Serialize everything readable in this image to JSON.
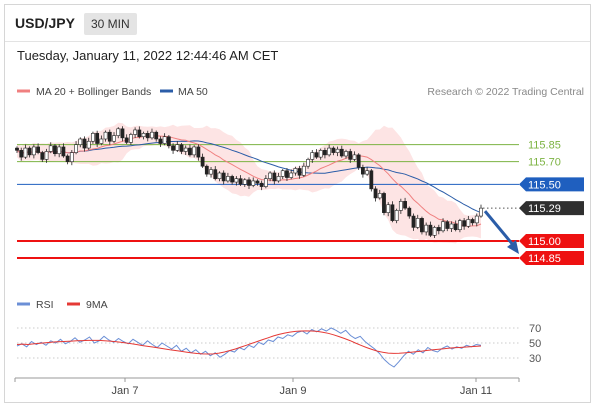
{
  "header": {
    "symbol": "USD/JPY",
    "timeframe": "30 MIN"
  },
  "timestamp": "Tuesday, January 11, 2022 12:44:46 AM CET",
  "colors": {
    "ma20": "#f08080",
    "ma50": "#2b5da8",
    "band_fill": "#fde4e4",
    "level_green": "#7cb342",
    "level_blue": "#1f5fbf",
    "level_red": "#ee1111",
    "price_tag": "#2f2f2f",
    "rsi": "#6b8fd6",
    "rsi_ma": "#e53935",
    "arrow": "#2b5da8"
  },
  "chart_data": [
    {
      "type": "candlestick",
      "legend": [
        {
          "label": "MA 20 + Bollinger Bands",
          "color": "#f08080",
          "style": "line"
        },
        {
          "label": "MA 50",
          "color": "#2b5da8",
          "style": "line"
        }
      ],
      "source": "Research © 2022 Trading Central",
      "legend_position": "top",
      "grid": false,
      "ylim": [
        114.7,
        116.2
      ],
      "x_ticks": [
        "Jan 7",
        "Jan 9",
        "Jan 11"
      ],
      "levels": [
        {
          "label": "115.85",
          "value": 115.85,
          "color": "#7cb342",
          "style": "line"
        },
        {
          "label": "115.70",
          "value": 115.7,
          "color": "#7cb342",
          "style": "line"
        },
        {
          "label": "115.50",
          "value": 115.5,
          "color": "#1f5fbf",
          "style": "tag"
        },
        {
          "label": "115.29",
          "value": 115.29,
          "color": "#2f2f2f",
          "style": "tag"
        },
        {
          "label": "115.00",
          "value": 115.0,
          "color": "#ee1111",
          "style": "tag"
        },
        {
          "label": "114.85",
          "value": 114.85,
          "color": "#ee1111",
          "style": "tag"
        }
      ],
      "forecast_arrow": {
        "from": 115.29,
        "to": 114.85,
        "direction": "down"
      },
      "close": [
        115.8,
        115.74,
        115.82,
        115.76,
        115.83,
        115.78,
        115.72,
        115.79,
        115.84,
        115.77,
        115.83,
        115.75,
        115.7,
        115.78,
        115.85,
        115.9,
        115.82,
        115.88,
        115.95,
        115.86,
        115.9,
        115.96,
        115.88,
        115.93,
        115.99,
        115.91,
        115.87,
        115.94,
        115.98,
        115.92,
        115.95,
        115.91,
        115.96,
        115.9,
        115.86,
        115.92,
        115.84,
        115.8,
        115.85,
        115.79,
        115.82,
        115.76,
        115.83,
        115.74,
        115.66,
        115.59,
        115.63,
        115.55,
        115.6,
        115.53,
        115.57,
        115.52,
        115.55,
        115.5,
        115.54,
        115.49,
        115.53,
        115.51,
        115.48,
        115.55,
        115.6,
        115.53,
        115.57,
        115.62,
        115.56,
        115.6,
        115.64,
        115.58,
        115.66,
        115.72,
        115.78,
        115.74,
        115.8,
        115.76,
        115.82,
        115.78,
        115.81,
        115.75,
        115.79,
        115.72,
        115.76,
        115.65,
        115.59,
        115.62,
        115.46,
        115.38,
        115.42,
        115.25,
        115.32,
        115.18,
        115.27,
        115.35,
        115.29,
        115.22,
        115.12,
        115.2,
        115.08,
        115.14,
        115.05,
        115.12,
        115.09,
        115.17,
        115.11,
        115.15,
        115.1,
        115.18,
        115.13,
        115.19,
        115.16,
        115.22,
        115.29
      ]
    },
    {
      "type": "line",
      "legend": [
        {
          "label": "RSI",
          "color": "#6b8fd6"
        },
        {
          "label": "9MA",
          "color": "#e53935"
        }
      ],
      "ylim": [
        10,
        90
      ],
      "y_ticks": [
        70,
        50,
        30
      ],
      "rsi": [
        46,
        49,
        45,
        52,
        48,
        51,
        47,
        53,
        50,
        55,
        49,
        52,
        57,
        51,
        54,
        58,
        50,
        53,
        59,
        54,
        51,
        56,
        52,
        49,
        55,
        51,
        47,
        53,
        48,
        44,
        50,
        46,
        42,
        47,
        39,
        43,
        37,
        41,
        35,
        39,
        33,
        37,
        31,
        35,
        40,
        38,
        44,
        41,
        47,
        44,
        51,
        48,
        54,
        52,
        58,
        56,
        61,
        59,
        64,
        66,
        62,
        68,
        65,
        69,
        66,
        70,
        67,
        63,
        67,
        60,
        56,
        59,
        52,
        47,
        42,
        36,
        28,
        22,
        18,
        25,
        33,
        39,
        35,
        41,
        37,
        44,
        40,
        38,
        43,
        46,
        42,
        45,
        43,
        47,
        45,
        48,
        47
      ],
      "ma9": [
        48,
        48.5,
        48,
        48.8,
        49.5,
        50.2,
        50.8,
        51.5,
        51.8,
        52.2,
        52.6,
        53,
        53.2,
        53.4,
        53.5,
        53.4,
        53,
        52.5,
        51.8,
        51,
        50,
        49,
        47.8,
        46.6,
        45.5,
        44.5,
        43.3,
        42.2,
        41,
        40,
        39,
        37.8,
        36.8,
        36,
        35.5,
        35.3,
        35.5,
        36.5,
        38,
        40,
        42,
        44.5,
        47,
        49.5,
        52,
        54.5,
        57,
        59.5,
        61.5,
        63.2,
        64.5,
        65.5,
        66,
        66.2,
        66,
        65.4,
        64.4,
        63,
        61,
        58.6,
        56,
        53.2,
        50,
        47,
        44,
        41.4,
        39.2,
        37.6,
        36.6,
        36.2,
        36.3,
        36.8,
        37.5,
        38.3,
        39.1,
        40,
        40.8,
        41.5,
        42.2,
        43,
        43.6,
        44,
        44.5,
        45,
        45.5,
        46
      ]
    }
  ]
}
